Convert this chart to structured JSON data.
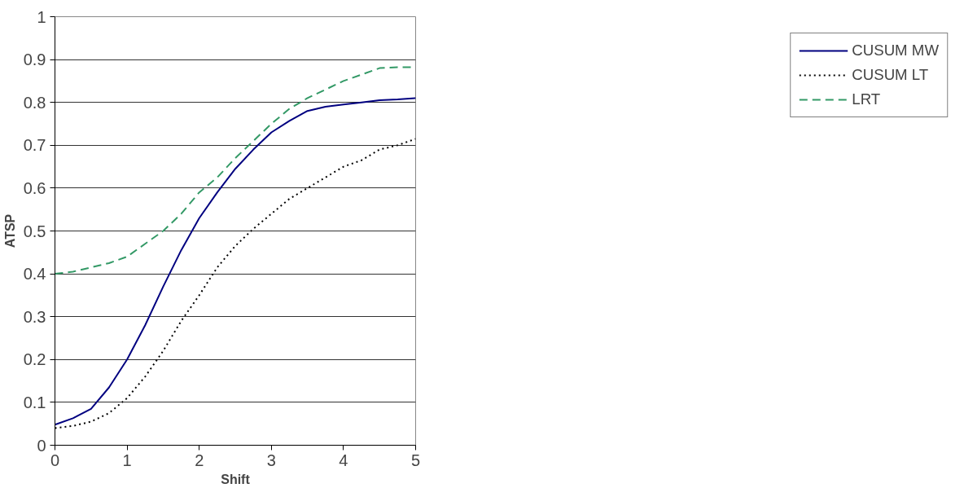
{
  "chart_data": {
    "type": "line",
    "xlabel": "Shift",
    "ylabel": "ATSP",
    "x": [
      0,
      0.25,
      0.5,
      0.75,
      1,
      1.25,
      1.5,
      1.75,
      2,
      2.25,
      2.5,
      2.75,
      3,
      3.25,
      3.5,
      3.75,
      4,
      4.25,
      4.5,
      4.75,
      5
    ],
    "series": [
      {
        "name": "CUSUM MW",
        "color": "#000080",
        "line_style": "solid",
        "values": [
          0.048,
          0.063,
          0.085,
          0.135,
          0.2,
          0.28,
          0.37,
          0.455,
          0.53,
          0.59,
          0.645,
          0.69,
          0.73,
          0.757,
          0.78,
          0.79,
          0.795,
          0.8,
          0.805,
          0.807,
          0.81
        ]
      },
      {
        "name": "CUSUM LT",
        "color": "#000000",
        "line_style": "dotted",
        "values": [
          0.04,
          0.045,
          0.055,
          0.075,
          0.11,
          0.16,
          0.22,
          0.29,
          0.35,
          0.415,
          0.465,
          0.505,
          0.54,
          0.575,
          0.6,
          0.625,
          0.65,
          0.665,
          0.69,
          0.7,
          0.715
        ]
      },
      {
        "name": "LRT",
        "color": "#339966",
        "line_style": "dashed",
        "values": [
          0.4,
          0.405,
          0.415,
          0.425,
          0.44,
          0.47,
          0.5,
          0.54,
          0.59,
          0.625,
          0.67,
          0.71,
          0.75,
          0.785,
          0.81,
          0.83,
          0.85,
          0.865,
          0.88,
          0.882,
          0.882
        ]
      }
    ],
    "xlim": [
      0,
      5
    ],
    "ylim": [
      0,
      1
    ],
    "xticks": [
      0,
      1,
      2,
      3,
      4,
      5
    ],
    "yticks": [
      0,
      0.1,
      0.2,
      0.3,
      0.4,
      0.5,
      0.6,
      0.7,
      0.8,
      0.9,
      1
    ],
    "grid": "y",
    "legend": "right",
    "marker": "none"
  }
}
